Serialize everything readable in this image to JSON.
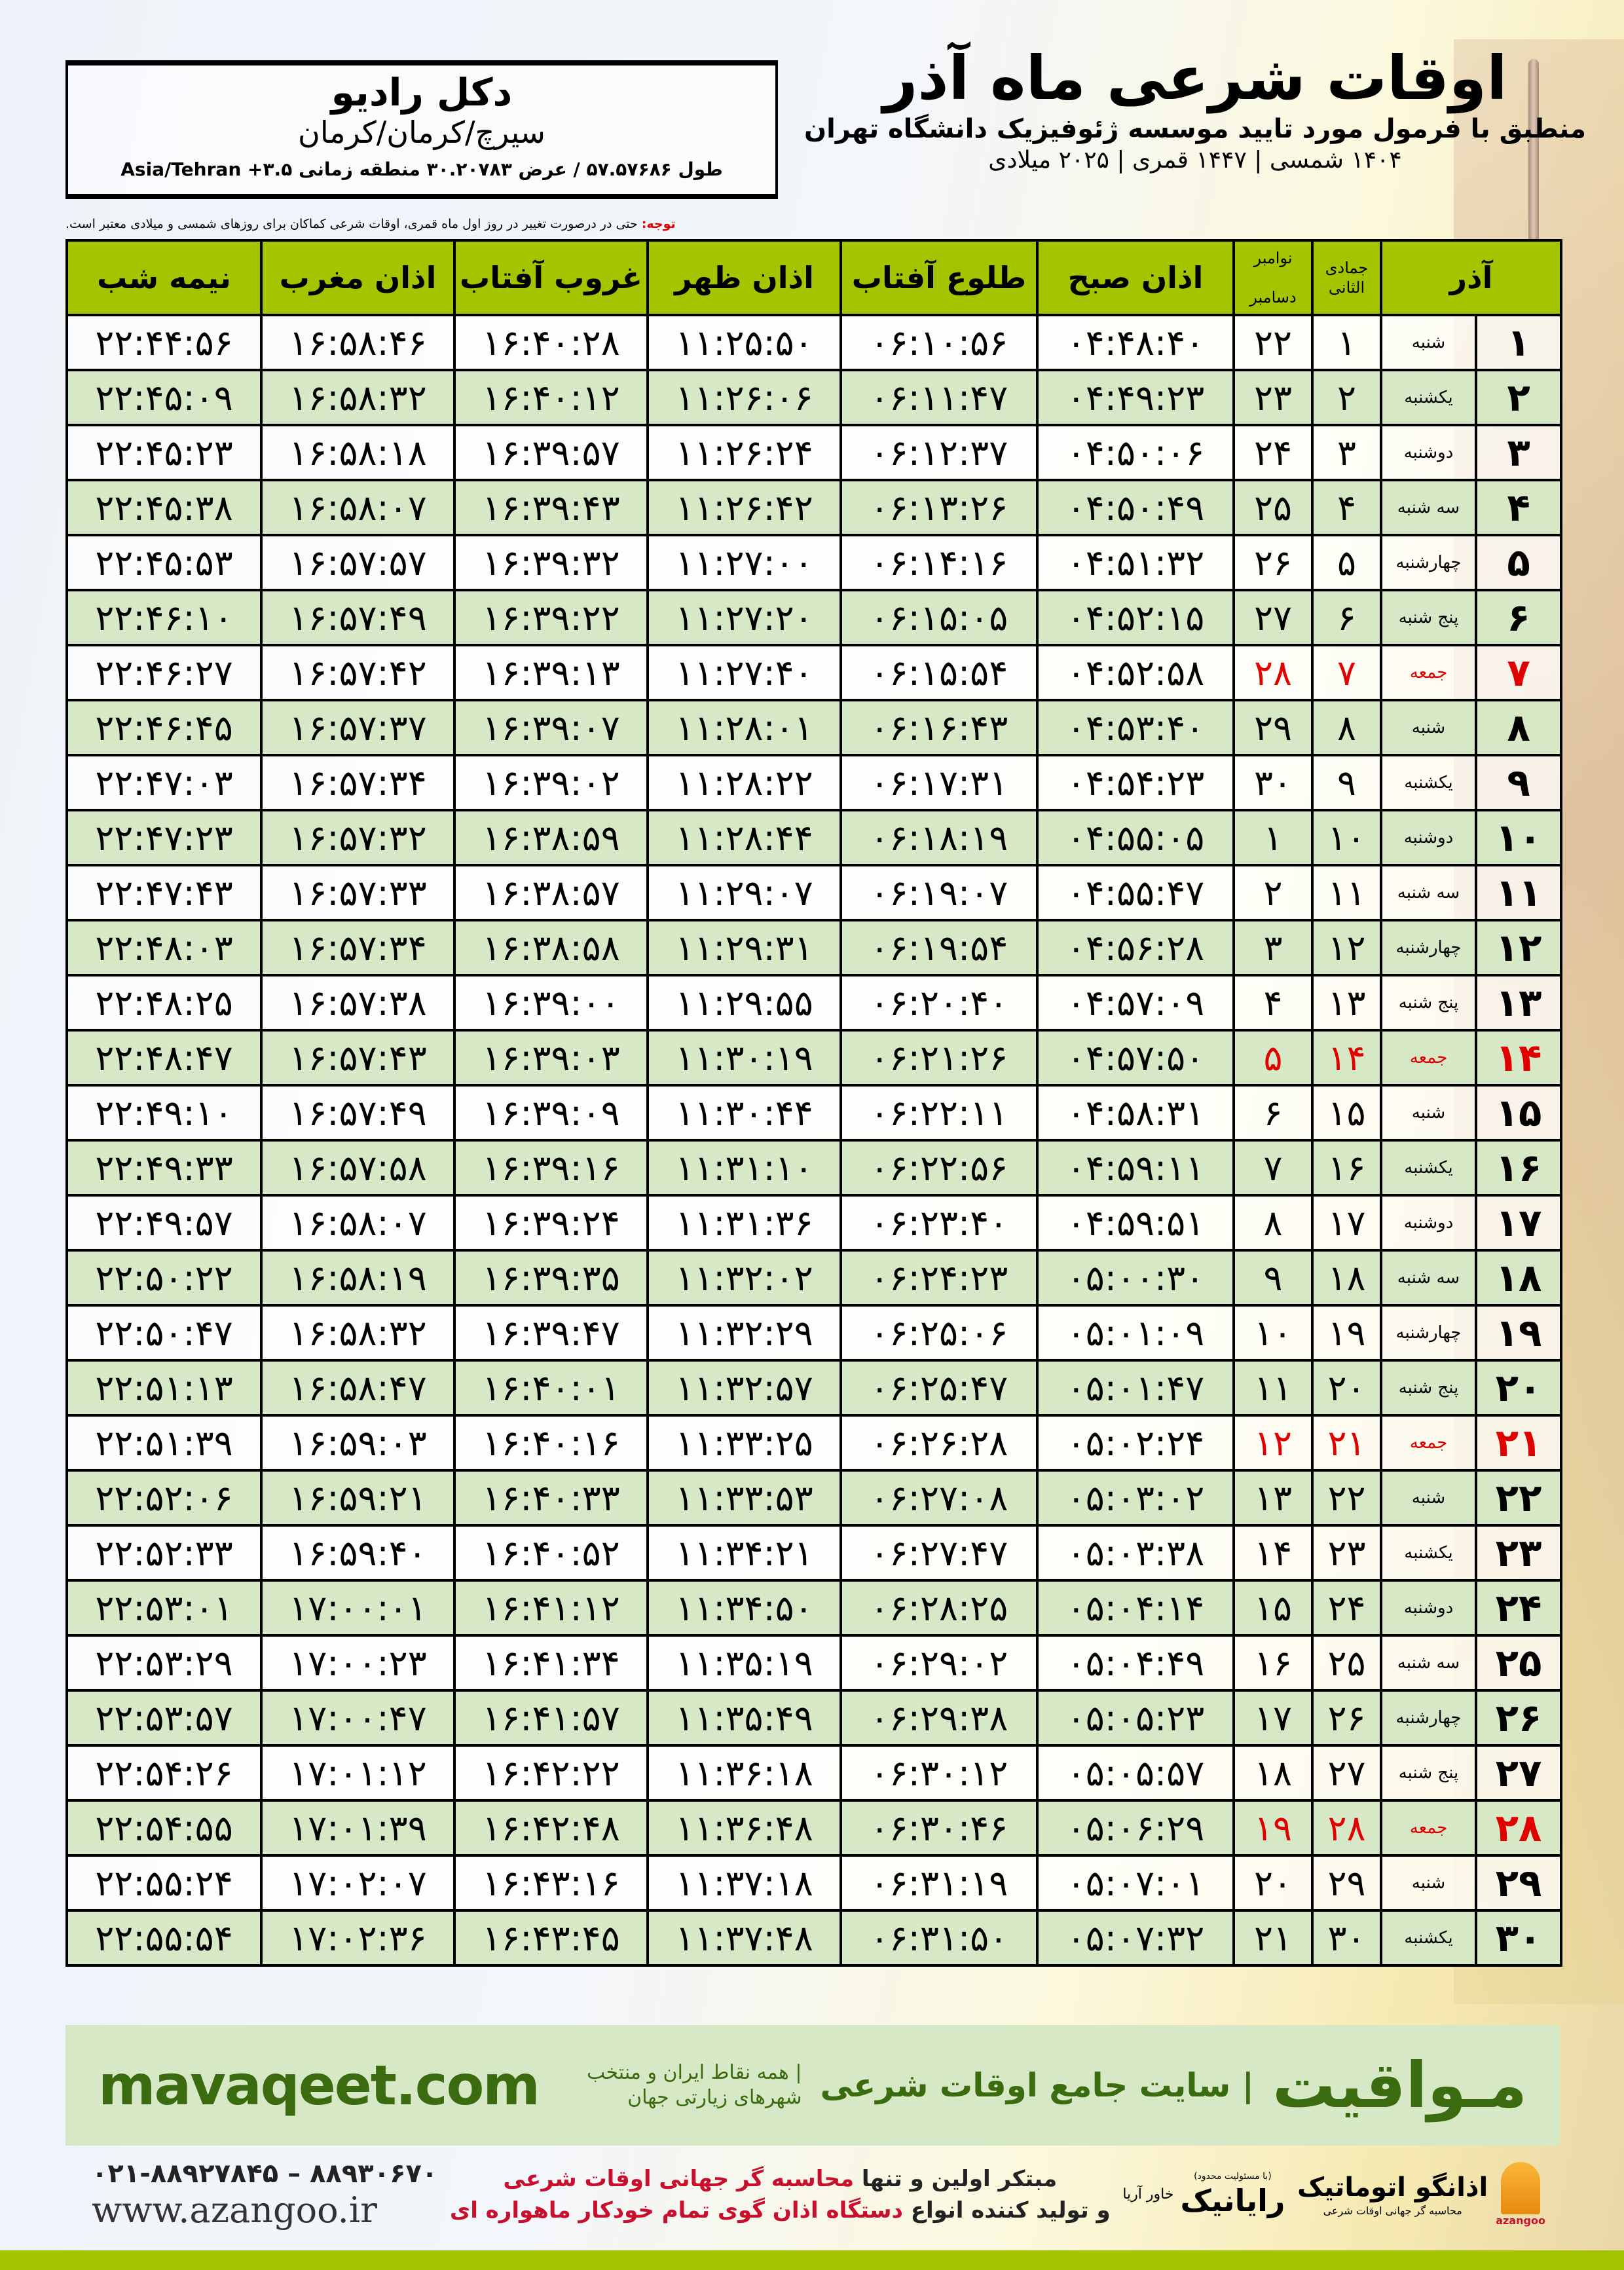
{
  "location": {
    "name": "دکل رادیو",
    "city": "سیرچ/کرمان/کرمان",
    "coords": "طول ۵۷.۵۷۶۸۶ / عرض ۳۰.۲۰۷۸۳ منطقه زمانی ۳.۵+ Asia/Tehran"
  },
  "header": {
    "title": "اوقات شرعی ماه آذر",
    "subtitle": "منطبق با فرمول مورد تایید موسسه ژئوفیزیک دانشگاه تهران",
    "years": "۱۴۰۴ شمسی | ۱۴۴۷ قمری | ۲۰۲۵ میلادی",
    "note_label": "توجه:",
    "note_text": " حتی در درصورت تغییر در روز اول ماه قمری، اوقات شرعی کماکان برای روزهای شمسی و میلادی معتبر است."
  },
  "columns": {
    "azar": "آذر",
    "hijri": "جمادی الثانی",
    "greg_top": "نوامبر",
    "greg_bottom": "دسامبر",
    "sobh": "اذان صبح",
    "tolu": "طلوع آفتاب",
    "zohr": "اذان ظهر",
    "ghorub": "غروب آفتاب",
    "maghrib": "اذان مغرب",
    "nime": "نیمه شب"
  },
  "colors": {
    "header_green": "#a4c400",
    "row_green": "#d7e8c6",
    "friday_red": "#e00000",
    "brand_green": "#3a6b0e"
  },
  "rows": [
    {
      "day": "۱",
      "wd": "شنبه",
      "hij": "۱",
      "greg": "۲۲",
      "sobh": "۰۴:۴۸:۴۰",
      "tolu": "۰۶:۱۰:۵۶",
      "zohr": "۱۱:۲۵:۵۰",
      "ghorub": "۱۶:۴۰:۲۸",
      "maghrib": "۱۶:۵۸:۴۶",
      "nime": "۲۲:۴۴:۵۶"
    },
    {
      "day": "۲",
      "wd": "یکشنبه",
      "hij": "۲",
      "greg": "۲۳",
      "sobh": "۰۴:۴۹:۲۳",
      "tolu": "۰۶:۱۱:۴۷",
      "zohr": "۱۱:۲۶:۰۶",
      "ghorub": "۱۶:۴۰:۱۲",
      "maghrib": "۱۶:۵۸:۳۲",
      "nime": "۲۲:۴۵:۰۹"
    },
    {
      "day": "۳",
      "wd": "دوشنبه",
      "hij": "۳",
      "greg": "۲۴",
      "sobh": "۰۴:۵۰:۰۶",
      "tolu": "۰۶:۱۲:۳۷",
      "zohr": "۱۱:۲۶:۲۴",
      "ghorub": "۱۶:۳۹:۵۷",
      "maghrib": "۱۶:۵۸:۱۸",
      "nime": "۲۲:۴۵:۲۳"
    },
    {
      "day": "۴",
      "wd": "سه شنبه",
      "hij": "۴",
      "greg": "۲۵",
      "sobh": "۰۴:۵۰:۴۹",
      "tolu": "۰۶:۱۳:۲۶",
      "zohr": "۱۱:۲۶:۴۲",
      "ghorub": "۱۶:۳۹:۴۳",
      "maghrib": "۱۶:۵۸:۰۷",
      "nime": "۲۲:۴۵:۳۸"
    },
    {
      "day": "۵",
      "wd": "چهارشنبه",
      "hij": "۵",
      "greg": "۲۶",
      "sobh": "۰۴:۵۱:۳۲",
      "tolu": "۰۶:۱۴:۱۶",
      "zohr": "۱۱:۲۷:۰۰",
      "ghorub": "۱۶:۳۹:۳۲",
      "maghrib": "۱۶:۵۷:۵۷",
      "nime": "۲۲:۴۵:۵۳"
    },
    {
      "day": "۶",
      "wd": "پنج شنبه",
      "hij": "۶",
      "greg": "۲۷",
      "sobh": "۰۴:۵۲:۱۵",
      "tolu": "۰۶:۱۵:۰۵",
      "zohr": "۱۱:۲۷:۲۰",
      "ghorub": "۱۶:۳۹:۲۲",
      "maghrib": "۱۶:۵۷:۴۹",
      "nime": "۲۲:۴۶:۱۰"
    },
    {
      "day": "۷",
      "wd": "جمعه",
      "hij": "۷",
      "greg": "۲۸",
      "sobh": "۰۴:۵۲:۵۸",
      "tolu": "۰۶:۱۵:۵۴",
      "zohr": "۱۱:۲۷:۴۰",
      "ghorub": "۱۶:۳۹:۱۳",
      "maghrib": "۱۶:۵۷:۴۲",
      "nime": "۲۲:۴۶:۲۷",
      "friday": true
    },
    {
      "day": "۸",
      "wd": "شنبه",
      "hij": "۸",
      "greg": "۲۹",
      "sobh": "۰۴:۵۳:۴۰",
      "tolu": "۰۶:۱۶:۴۳",
      "zohr": "۱۱:۲۸:۰۱",
      "ghorub": "۱۶:۳۹:۰۷",
      "maghrib": "۱۶:۵۷:۳۷",
      "nime": "۲۲:۴۶:۴۵"
    },
    {
      "day": "۹",
      "wd": "یکشنبه",
      "hij": "۹",
      "greg": "۳۰",
      "sobh": "۰۴:۵۴:۲۳",
      "tolu": "۰۶:۱۷:۳۱",
      "zohr": "۱۱:۲۸:۲۲",
      "ghorub": "۱۶:۳۹:۰۲",
      "maghrib": "۱۶:۵۷:۳۴",
      "nime": "۲۲:۴۷:۰۳"
    },
    {
      "day": "۱۰",
      "wd": "دوشنبه",
      "hij": "۱۰",
      "greg": "۱",
      "sobh": "۰۴:۵۵:۰۵",
      "tolu": "۰۶:۱۸:۱۹",
      "zohr": "۱۱:۲۸:۴۴",
      "ghorub": "۱۶:۳۸:۵۹",
      "maghrib": "۱۶:۵۷:۳۲",
      "nime": "۲۲:۴۷:۲۳"
    },
    {
      "day": "۱۱",
      "wd": "سه شنبه",
      "hij": "۱۱",
      "greg": "۲",
      "sobh": "۰۴:۵۵:۴۷",
      "tolu": "۰۶:۱۹:۰۷",
      "zohr": "۱۱:۲۹:۰۷",
      "ghorub": "۱۶:۳۸:۵۷",
      "maghrib": "۱۶:۵۷:۳۳",
      "nime": "۲۲:۴۷:۴۳"
    },
    {
      "day": "۱۲",
      "wd": "چهارشنبه",
      "hij": "۱۲",
      "greg": "۳",
      "sobh": "۰۴:۵۶:۲۸",
      "tolu": "۰۶:۱۹:۵۴",
      "zohr": "۱۱:۲۹:۳۱",
      "ghorub": "۱۶:۳۸:۵۸",
      "maghrib": "۱۶:۵۷:۳۴",
      "nime": "۲۲:۴۸:۰۳"
    },
    {
      "day": "۱۳",
      "wd": "پنج شنبه",
      "hij": "۱۳",
      "greg": "۴",
      "sobh": "۰۴:۵۷:۰۹",
      "tolu": "۰۶:۲۰:۴۰",
      "zohr": "۱۱:۲۹:۵۵",
      "ghorub": "۱۶:۳۹:۰۰",
      "maghrib": "۱۶:۵۷:۳۸",
      "nime": "۲۲:۴۸:۲۵"
    },
    {
      "day": "۱۴",
      "wd": "جمعه",
      "hij": "۱۴",
      "greg": "۵",
      "sobh": "۰۴:۵۷:۵۰",
      "tolu": "۰۶:۲۱:۲۶",
      "zohr": "۱۱:۳۰:۱۹",
      "ghorub": "۱۶:۳۹:۰۳",
      "maghrib": "۱۶:۵۷:۴۳",
      "nime": "۲۲:۴۸:۴۷",
      "friday": true
    },
    {
      "day": "۱۵",
      "wd": "شنبه",
      "hij": "۱۵",
      "greg": "۶",
      "sobh": "۰۴:۵۸:۳۱",
      "tolu": "۰۶:۲۲:۱۱",
      "zohr": "۱۱:۳۰:۴۴",
      "ghorub": "۱۶:۳۹:۰۹",
      "maghrib": "۱۶:۵۷:۴۹",
      "nime": "۲۲:۴۹:۱۰"
    },
    {
      "day": "۱۶",
      "wd": "یکشنبه",
      "hij": "۱۶",
      "greg": "۷",
      "sobh": "۰۴:۵۹:۱۱",
      "tolu": "۰۶:۲۲:۵۶",
      "zohr": "۱۱:۳۱:۱۰",
      "ghorub": "۱۶:۳۹:۱۶",
      "maghrib": "۱۶:۵۷:۵۸",
      "nime": "۲۲:۴۹:۳۳"
    },
    {
      "day": "۱۷",
      "wd": "دوشنبه",
      "hij": "۱۷",
      "greg": "۸",
      "sobh": "۰۴:۵۹:۵۱",
      "tolu": "۰۶:۲۳:۴۰",
      "zohr": "۱۱:۳۱:۳۶",
      "ghorub": "۱۶:۳۹:۲۴",
      "maghrib": "۱۶:۵۸:۰۷",
      "nime": "۲۲:۴۹:۵۷"
    },
    {
      "day": "۱۸",
      "wd": "سه شنبه",
      "hij": "۱۸",
      "greg": "۹",
      "sobh": "۰۵:۰۰:۳۰",
      "tolu": "۰۶:۲۴:۲۳",
      "zohr": "۱۱:۳۲:۰۲",
      "ghorub": "۱۶:۳۹:۳۵",
      "maghrib": "۱۶:۵۸:۱۹",
      "nime": "۲۲:۵۰:۲۲"
    },
    {
      "day": "۱۹",
      "wd": "چهارشنبه",
      "hij": "۱۹",
      "greg": "۱۰",
      "sobh": "۰۵:۰۱:۰۹",
      "tolu": "۰۶:۲۵:۰۶",
      "zohr": "۱۱:۳۲:۲۹",
      "ghorub": "۱۶:۳۹:۴۷",
      "maghrib": "۱۶:۵۸:۳۲",
      "nime": "۲۲:۵۰:۴۷"
    },
    {
      "day": "۲۰",
      "wd": "پنج شنبه",
      "hij": "۲۰",
      "greg": "۱۱",
      "sobh": "۰۵:۰۱:۴۷",
      "tolu": "۰۶:۲۵:۴۷",
      "zohr": "۱۱:۳۲:۵۷",
      "ghorub": "۱۶:۴۰:۰۱",
      "maghrib": "۱۶:۵۸:۴۷",
      "nime": "۲۲:۵۱:۱۳"
    },
    {
      "day": "۲۱",
      "wd": "جمعه",
      "hij": "۲۱",
      "greg": "۱۲",
      "sobh": "۰۵:۰۲:۲۴",
      "tolu": "۰۶:۲۶:۲۸",
      "zohr": "۱۱:۳۳:۲۵",
      "ghorub": "۱۶:۴۰:۱۶",
      "maghrib": "۱۶:۵۹:۰۳",
      "nime": "۲۲:۵۱:۳۹",
      "friday": true
    },
    {
      "day": "۲۲",
      "wd": "شنبه",
      "hij": "۲۲",
      "greg": "۱۳",
      "sobh": "۰۵:۰۳:۰۲",
      "tolu": "۰۶:۲۷:۰۸",
      "zohr": "۱۱:۳۳:۵۳",
      "ghorub": "۱۶:۴۰:۳۳",
      "maghrib": "۱۶:۵۹:۲۱",
      "nime": "۲۲:۵۲:۰۶"
    },
    {
      "day": "۲۳",
      "wd": "یکشنبه",
      "hij": "۲۳",
      "greg": "۱۴",
      "sobh": "۰۵:۰۳:۳۸",
      "tolu": "۰۶:۲۷:۴۷",
      "zohr": "۱۱:۳۴:۲۱",
      "ghorub": "۱۶:۴۰:۵۲",
      "maghrib": "۱۶:۵۹:۴۰",
      "nime": "۲۲:۵۲:۳۳"
    },
    {
      "day": "۲۴",
      "wd": "دوشنبه",
      "hij": "۲۴",
      "greg": "۱۵",
      "sobh": "۰۵:۰۴:۱۴",
      "tolu": "۰۶:۲۸:۲۵",
      "zohr": "۱۱:۳۴:۵۰",
      "ghorub": "۱۶:۴۱:۱۲",
      "maghrib": "۱۷:۰۰:۰۱",
      "nime": "۲۲:۵۳:۰۱"
    },
    {
      "day": "۲۵",
      "wd": "سه شنبه",
      "hij": "۲۵",
      "greg": "۱۶",
      "sobh": "۰۵:۰۴:۴۹",
      "tolu": "۰۶:۲۹:۰۲",
      "zohr": "۱۱:۳۵:۱۹",
      "ghorub": "۱۶:۴۱:۳۴",
      "maghrib": "۱۷:۰۰:۲۳",
      "nime": "۲۲:۵۳:۲۹"
    },
    {
      "day": "۲۶",
      "wd": "چهارشنبه",
      "hij": "۲۶",
      "greg": "۱۷",
      "sobh": "۰۵:۰۵:۲۳",
      "tolu": "۰۶:۲۹:۳۸",
      "zohr": "۱۱:۳۵:۴۹",
      "ghorub": "۱۶:۴۱:۵۷",
      "maghrib": "۱۷:۰۰:۴۷",
      "nime": "۲۲:۵۳:۵۷"
    },
    {
      "day": "۲۷",
      "wd": "پنج شنبه",
      "hij": "۲۷",
      "greg": "۱۸",
      "sobh": "۰۵:۰۵:۵۷",
      "tolu": "۰۶:۳۰:۱۲",
      "zohr": "۱۱:۳۶:۱۸",
      "ghorub": "۱۶:۴۲:۲۲",
      "maghrib": "۱۷:۰۱:۱۲",
      "nime": "۲۲:۵۴:۲۶"
    },
    {
      "day": "۲۸",
      "wd": "جمعه",
      "hij": "۲۸",
      "greg": "۱۹",
      "sobh": "۰۵:۰۶:۲۹",
      "tolu": "۰۶:۳۰:۴۶",
      "zohr": "۱۱:۳۶:۴۸",
      "ghorub": "۱۶:۴۲:۴۸",
      "maghrib": "۱۷:۰۱:۳۹",
      "nime": "۲۲:۵۴:۵۵",
      "friday": true
    },
    {
      "day": "۲۹",
      "wd": "شنبه",
      "hij": "۲۹",
      "greg": "۲۰",
      "sobh": "۰۵:۰۷:۰۱",
      "tolu": "۰۶:۳۱:۱۹",
      "zohr": "۱۱:۳۷:۱۸",
      "ghorub": "۱۶:۴۳:۱۶",
      "maghrib": "۱۷:۰۲:۰۷",
      "nime": "۲۲:۵۵:۲۴"
    },
    {
      "day": "۳۰",
      "wd": "یکشنبه",
      "hij": "۳۰",
      "greg": "۲۱",
      "sobh": "۰۵:۰۷:۳۲",
      "tolu": "۰۶:۳۱:۵۰",
      "zohr": "۱۱:۳۷:۴۸",
      "ghorub": "۱۶:۴۳:۴۵",
      "maghrib": "۱۷:۰۲:۳۶",
      "nime": "۲۲:۵۵:۵۴"
    }
  ],
  "banner": {
    "site": "mavaqeet.com",
    "brand": "مـواقیت",
    "slogan": "| سایت جامع اوقات شرعی",
    "sub": "| همه نقاط ایران و منتخب شهرهای زیارتی جهان"
  },
  "footer": {
    "phone": "۰۲۱-۸۸۹۲۷۸۴۵ – ۸۸۹۳۰۶۷۰",
    "www": "www.azangoo.ir",
    "ad_line1_a": "مبتکر اولین و تنها ",
    "ad_line1_b": "محاسبه گر جهانی اوقات شرعی",
    "ad_line2_a": "و تولید کننده انواع ",
    "ad_line2_b": "دستگاه اذان گوی تمام خودکار ماهواره ای",
    "logo1_name": "رایانیک",
    "logo1_sub": "خاور آریا",
    "logo1_tiny": "(با مسئولیت محدود)",
    "logo2_name": "اذانگو اتوماتیک",
    "logo2_tag": "محاسبه گر جهانی اوقات شرعی",
    "logo2_en": "azangoo"
  }
}
